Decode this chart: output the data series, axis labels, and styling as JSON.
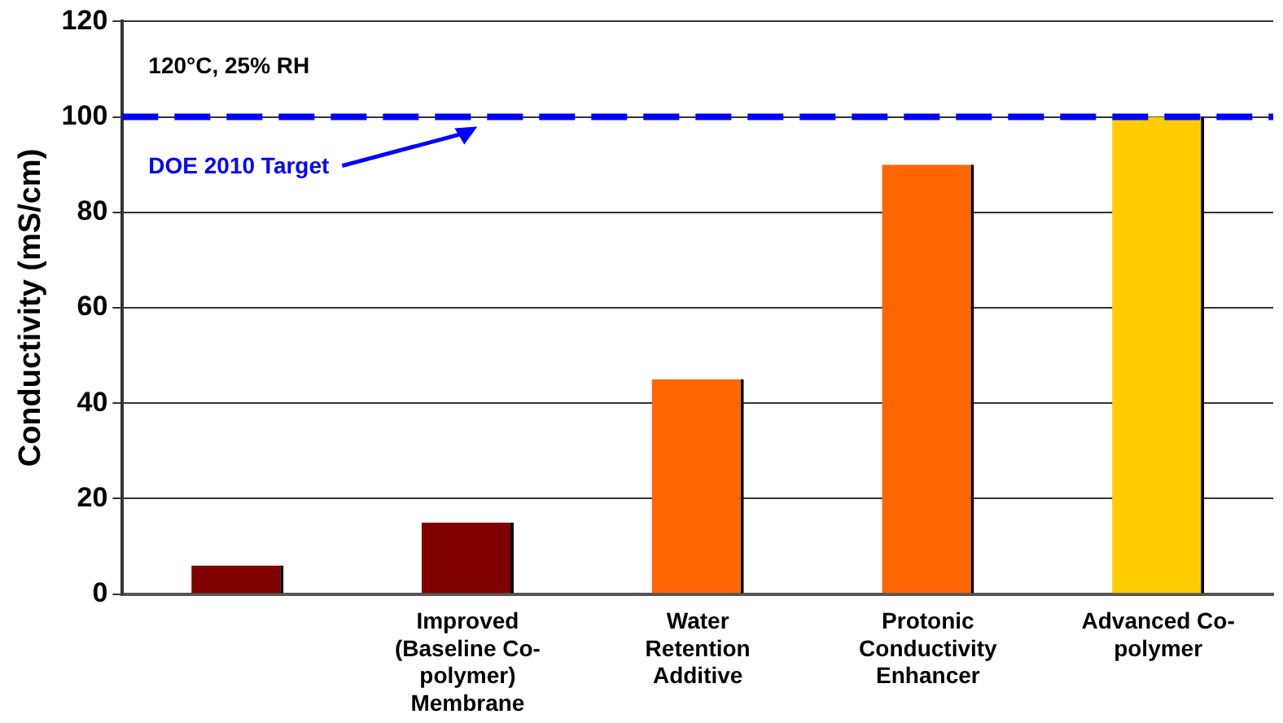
{
  "chart_data": {
    "type": "bar",
    "ylabel": "Conductivity (mS/cm)",
    "categories": [
      null,
      "Improved (Baseline Co-polymer) Membrane",
      "Water Retention Additive",
      "Protonic Conductivity Enhancer",
      "Advanced Co-polymer"
    ],
    "values": [
      6,
      15,
      45,
      90,
      100
    ],
    "colors": [
      "#800000",
      "#800000",
      "#ff6600",
      "#ff6600",
      "#ffcc00"
    ],
    "ylim": [
      0,
      120
    ],
    "yticks": [
      0,
      20,
      40,
      60,
      80,
      100,
      120
    ],
    "grid": "y",
    "ref_lines": [
      {
        "axis": "y",
        "value": 100,
        "label": "DOE 2010 Target",
        "color": "#0000ff",
        "line_style": "dashed"
      }
    ],
    "annotations": [
      "120°C, 25% RH"
    ]
  }
}
